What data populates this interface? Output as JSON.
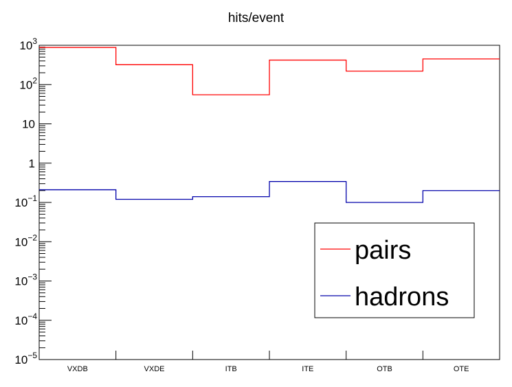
{
  "chart_data": {
    "type": "step",
    "title": "hits/event",
    "xlabel": "",
    "ylabel": "",
    "categories": [
      "VXDB",
      "VXDE",
      "ITB",
      "ITE",
      "OTB",
      "OTE"
    ],
    "yscale": "log",
    "ylim": [
      1e-05,
      1000
    ],
    "y_tick_labels": [
      {
        "value": 1000,
        "base": "10",
        "exp": "3"
      },
      {
        "value": 100,
        "base": "10",
        "exp": "2"
      },
      {
        "value": 10,
        "base": "10",
        "exp": ""
      },
      {
        "value": 1,
        "base": "1",
        "exp": ""
      },
      {
        "value": 0.1,
        "base": "10",
        "exp": "−1"
      },
      {
        "value": 0.01,
        "base": "10",
        "exp": "−2"
      },
      {
        "value": 0.001,
        "base": "10",
        "exp": "−3"
      },
      {
        "value": 0.0001,
        "base": "10",
        "exp": "−4"
      },
      {
        "value": 1e-05,
        "base": "10",
        "exp": "−5"
      }
    ],
    "series": [
      {
        "name": "pairs",
        "color": "#ff0000",
        "values": [
          880,
          320,
          55,
          420,
          220,
          450
        ]
      },
      {
        "name": "hadrons",
        "color": "#0000aa",
        "values": [
          0.21,
          0.12,
          0.14,
          0.34,
          0.1,
          0.2
        ]
      }
    ],
    "legend_position": "bottom-right",
    "grid": false
  }
}
